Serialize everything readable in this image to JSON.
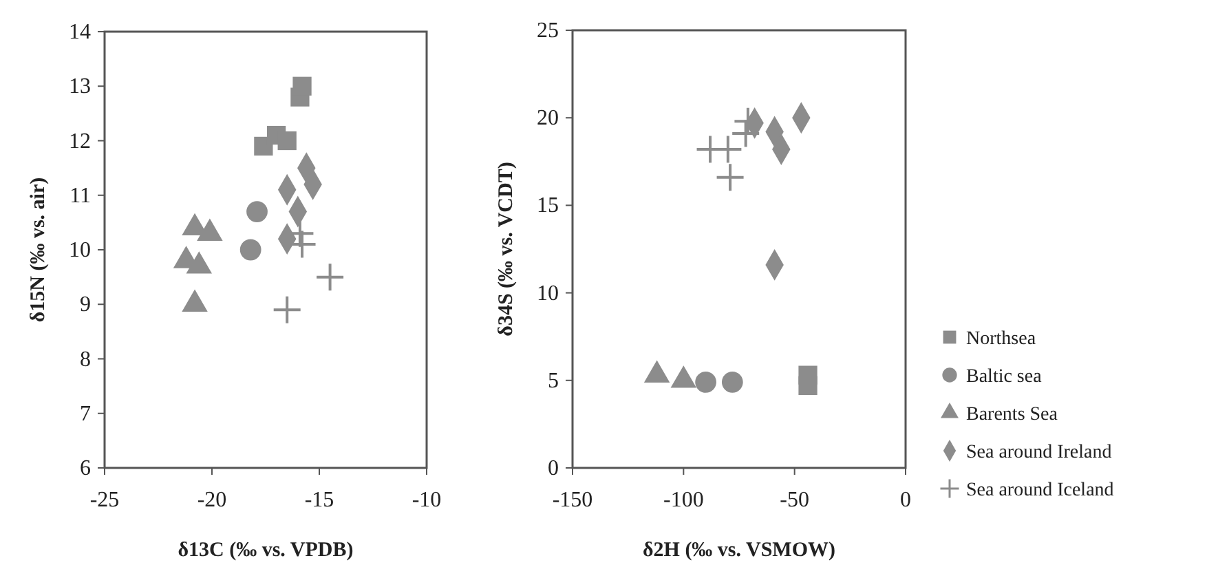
{
  "chart_data": [
    {
      "type": "scatter",
      "xlabel": "δ13C (‰ vs. VPDB)",
      "ylabel": "δ15N (‰ vs. air)",
      "xlim": [
        -25,
        -10
      ],
      "xticks": [
        -25,
        -20,
        -15,
        -10
      ],
      "ylim": [
        6,
        14
      ],
      "yticks": [
        6,
        7,
        8,
        9,
        10,
        11,
        12,
        13,
        14
      ],
      "grid": false,
      "legend": false,
      "series": [
        {
          "marker": "square",
          "color": "#8c8c8c",
          "x": [
            -15.9,
            -15.8,
            -17.6,
            -17.0,
            -16.5
          ],
          "values": [
            12.8,
            13.0,
            11.9,
            12.1,
            12.0
          ]
        },
        {
          "marker": "circle",
          "color": "#8c8c8c",
          "x": [
            -17.9,
            -18.2
          ],
          "values": [
            10.7,
            10.0
          ]
        },
        {
          "marker": "triangle",
          "color": "#8c8c8c",
          "x": [
            -20.8,
            -20.1,
            -21.2,
            -20.6,
            -20.8
          ],
          "values": [
            10.4,
            10.3,
            9.8,
            9.7,
            9.0
          ]
        },
        {
          "marker": "diamond",
          "color": "#8c8c8c",
          "x": [
            -15.6,
            -15.3,
            -16.5,
            -16.0,
            -16.5
          ],
          "values": [
            11.5,
            11.2,
            11.1,
            10.7,
            10.2
          ]
        },
        {
          "marker": "cross",
          "color": "#8c8c8c",
          "x": [
            -15.9,
            -15.8,
            -14.5,
            -16.5
          ],
          "values": [
            10.3,
            10.1,
            9.5,
            8.9
          ]
        }
      ]
    },
    {
      "type": "scatter",
      "xlabel": "δ2H (‰ vs. VSMOW)",
      "ylabel": "δ34S (‰ vs. VCDT)",
      "xlim": [
        -150,
        0
      ],
      "xticks": [
        -150,
        -100,
        -50,
        0
      ],
      "ylim": [
        0,
        25
      ],
      "yticks": [
        0,
        5,
        10,
        15,
        20,
        25
      ],
      "grid": false,
      "legend": "right",
      "series": [
        {
          "name": "Northsea",
          "marker": "square",
          "color": "#8c8c8c",
          "x": [
            -44,
            -44
          ],
          "values": [
            5.3,
            4.7
          ]
        },
        {
          "name": "Baltic sea",
          "marker": "circle",
          "color": "#8c8c8c",
          "x": [
            -90,
            -78
          ],
          "values": [
            4.9,
            4.9
          ]
        },
        {
          "name": "Barents Sea",
          "marker": "triangle",
          "color": "#8c8c8c",
          "x": [
            -112,
            -100
          ],
          "values": [
            5.3,
            5.0
          ]
        },
        {
          "name": "Sea around Ireland",
          "marker": "diamond",
          "color": "#8c8c8c",
          "x": [
            -47,
            -59,
            -56,
            -68,
            -59
          ],
          "values": [
            20.0,
            19.2,
            18.2,
            19.7,
            11.6
          ]
        },
        {
          "name": "Sea around Iceland",
          "marker": "cross",
          "color": "#8c8c8c",
          "x": [
            -88,
            -80,
            -79,
            -71,
            -72
          ],
          "values": [
            18.2,
            18.2,
            16.6,
            19.8,
            19.1
          ]
        }
      ]
    }
  ]
}
